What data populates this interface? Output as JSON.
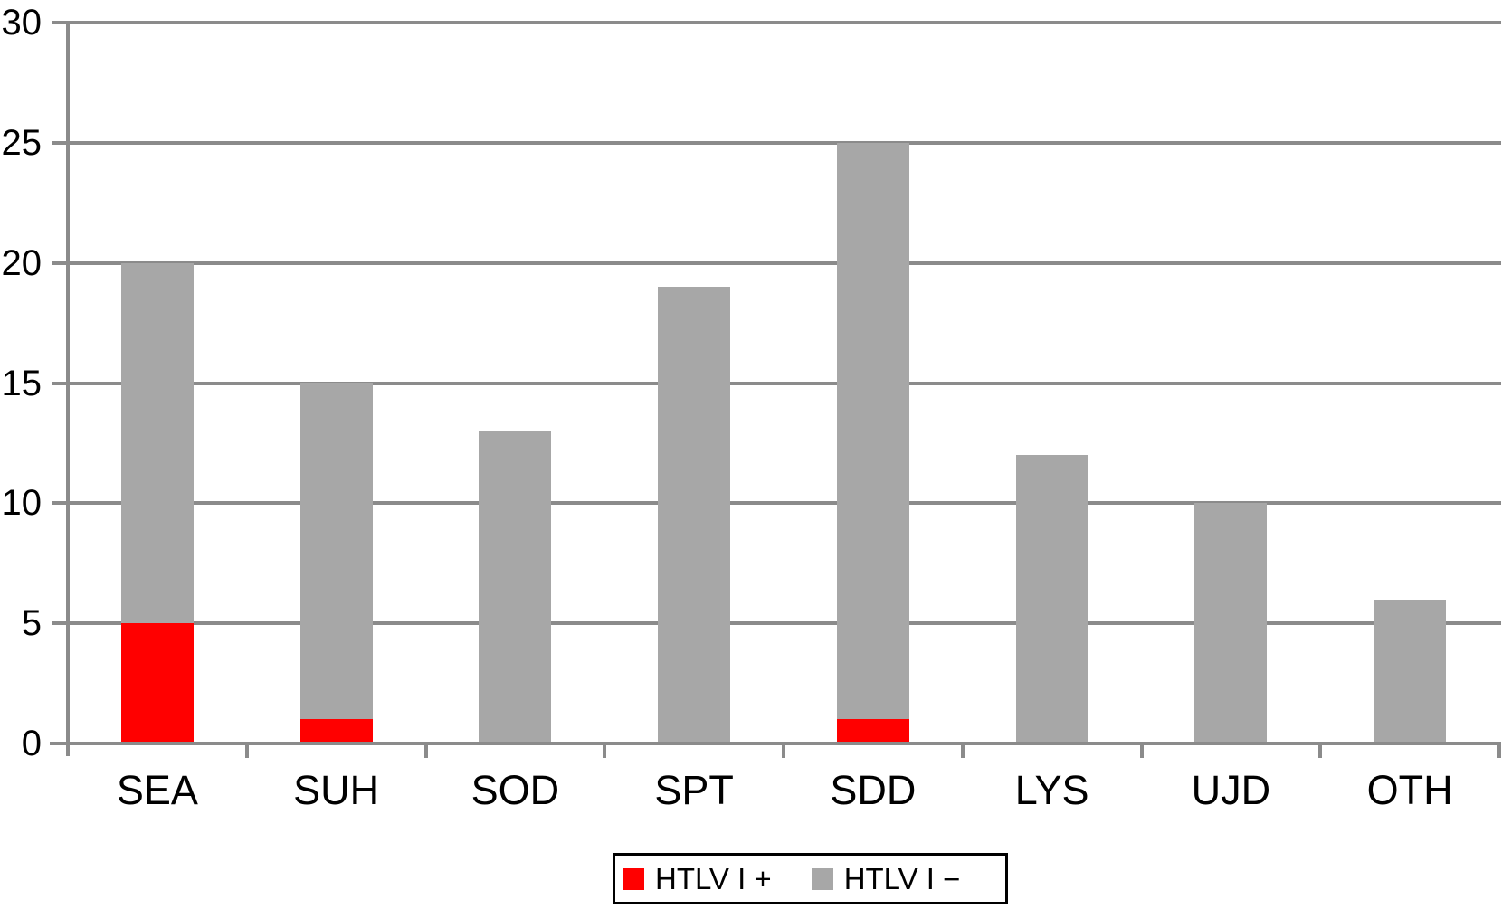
{
  "chart_data": {
    "type": "bar",
    "stacked": true,
    "title": "",
    "xlabel": "",
    "ylabel": "",
    "categories": [
      "SEA",
      "SUH",
      "SOD",
      "SPT",
      "SDD",
      "LYS",
      "UJD",
      "OTH"
    ],
    "series": [
      {
        "name": "HTLV I +",
        "color": "#ff0000",
        "values": [
          5,
          1,
          0,
          0,
          1,
          0,
          0,
          0
        ]
      },
      {
        "name": "HTLV I −",
        "color": "#a7a7a7",
        "values": [
          15,
          14,
          13,
          19,
          24,
          12,
          10,
          6
        ]
      }
    ],
    "stacked_totals": [
      20,
      15,
      13,
      19,
      25,
      12,
      10,
      6
    ],
    "ylim": [
      0,
      30
    ],
    "yticks": [
      0,
      5,
      10,
      15,
      20,
      25,
      30
    ],
    "grid": true,
    "legend_position": "bottom-center",
    "axis_color": "#8b8b8b",
    "text_color": "#000000",
    "plot_background": "#ffffff"
  },
  "legend": {
    "items": [
      {
        "label": "HTLV I +",
        "swatch_color": "#ff0000",
        "icon": "red-square-swatch"
      },
      {
        "label": "HTLV I −",
        "swatch_color": "#a7a7a7",
        "icon": "gray-square-swatch"
      }
    ]
  }
}
